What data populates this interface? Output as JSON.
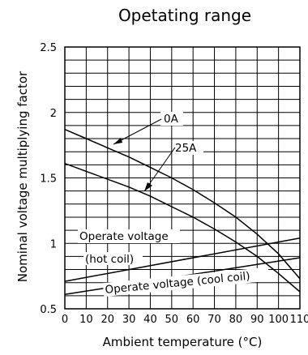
{
  "chart_data": {
    "type": "line",
    "title": "Opetating range",
    "xlabel": "Ambient temperature (°C)",
    "ylabel": "Nominal voltage multiplying factor",
    "xlim": [
      0,
      110
    ],
    "ylim": [
      0.5,
      2.5
    ],
    "x_ticks": [
      "0",
      "10",
      "20",
      "30",
      "40",
      "50",
      "60",
      "70",
      "80",
      "90",
      "100",
      "110"
    ],
    "y_ticks": [
      "0.5",
      "1",
      "1.5",
      "2",
      "2.5"
    ],
    "grid": true,
    "legend": "none",
    "series": [
      {
        "name": "0A",
        "x": [
          0,
          10,
          20,
          30,
          40,
          50,
          60,
          70,
          80,
          90,
          100,
          110
        ],
        "y": [
          1.87,
          1.8,
          1.73,
          1.66,
          1.58,
          1.5,
          1.41,
          1.31,
          1.2,
          1.07,
          0.92,
          0.73
        ]
      },
      {
        "name": "25A",
        "x": [
          0,
          10,
          20,
          30,
          40,
          50,
          60,
          70,
          80,
          90,
          100,
          110
        ],
        "y": [
          1.61,
          1.55,
          1.49,
          1.43,
          1.36,
          1.28,
          1.2,
          1.11,
          1.01,
          0.9,
          0.77,
          0.63
        ]
      },
      {
        "name": "Operate voltage (hot coil)",
        "x": [
          0,
          110
        ],
        "y": [
          0.71,
          1.04
        ]
      },
      {
        "name": "Operate voltage (cool coil)",
        "x": [
          0,
          110
        ],
        "y": [
          0.61,
          0.89
        ]
      }
    ],
    "annotations": {
      "label_0a": "0A",
      "label_25a": "25A",
      "hot_line1": "Operate voltage",
      "hot_line2": "(hot coil)",
      "cool": "Operate voltage (cool coil)"
    }
  }
}
